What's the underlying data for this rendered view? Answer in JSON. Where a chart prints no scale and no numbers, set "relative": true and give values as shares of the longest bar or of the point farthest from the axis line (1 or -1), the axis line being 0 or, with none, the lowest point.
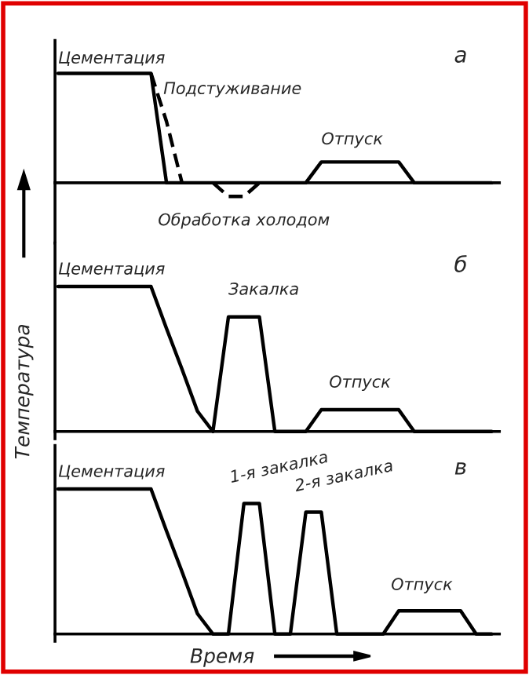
{
  "chart_data": [
    {
      "type": "line",
      "relative": true,
      "title": "а",
      "grid": false,
      "legend": false,
      "marker": "none",
      "categories": [
        null,
        null,
        null,
        null,
        null,
        null,
        null,
        null,
        null,
        null,
        null,
        null,
        null,
        null,
        null,
        null,
        null,
        null,
        null,
        null,
        null,
        null,
        null,
        null,
        null,
        null,
        null,
        null,
        null
      ],
      "annotations": [
        "Цементация",
        "Подстуживание",
        "Обработка холодом",
        "Отпуск"
      ],
      "series": [
        {
          "color": "#000000",
          "line_style": "solid",
          "values": [
            1,
            1,
            1,
            1,
            1,
            1,
            1,
            0,
            0,
            0,
            0,
            0,
            0,
            0,
            0,
            0,
            0,
            0.19,
            0.19,
            0.19,
            0.19,
            0.19,
            0.19,
            0,
            0,
            0,
            0,
            0,
            0
          ]
        },
        {
          "color": "#000000",
          "line_style": "dashed",
          "values": [
            null,
            null,
            null,
            null,
            null,
            null,
            1,
            0.56,
            0,
            null,
            null,
            null,
            null,
            null,
            null,
            null,
            null,
            null,
            null,
            null,
            null,
            null,
            null,
            null,
            null,
            null,
            null,
            null,
            null
          ]
        },
        {
          "color": "#000000",
          "line_style": "dashed",
          "values": [
            null,
            null,
            null,
            null,
            null,
            null,
            null,
            null,
            null,
            null,
            0,
            -0.125,
            -0.125,
            0,
            null,
            null,
            null,
            null,
            null,
            null,
            null,
            null,
            null,
            null,
            null,
            null,
            null,
            null,
            null
          ]
        }
      ]
    },
    {
      "type": "line",
      "relative": true,
      "title": "б",
      "ylabel": "Температура",
      "grid": false,
      "legend": false,
      "marker": "none",
      "categories": [
        null,
        null,
        null,
        null,
        null,
        null,
        null,
        null,
        null,
        null,
        null,
        null,
        null,
        null,
        null,
        null,
        null,
        null,
        null,
        null,
        null,
        null,
        null,
        null,
        null,
        null,
        null,
        null,
        null
      ],
      "annotations": [
        "Цементация",
        "Закалка",
        "Отпуск"
      ],
      "series": [
        {
          "color": "#000000",
          "line_style": "solid",
          "values": [
            1,
            1,
            1,
            1,
            1,
            1,
            1,
            0.71,
            0.43,
            0.14,
            0,
            0.79,
            0.79,
            0.79,
            0,
            0,
            0,
            0.15,
            0.15,
            0.15,
            0.15,
            0.15,
            0.15,
            0,
            0,
            0,
            0,
            0,
            0
          ]
        }
      ]
    },
    {
      "type": "line",
      "relative": true,
      "title": "в",
      "xlabel": "Время",
      "grid": false,
      "legend": false,
      "marker": "none",
      "categories": [
        null,
        null,
        null,
        null,
        null,
        null,
        null,
        null,
        null,
        null,
        null,
        null,
        null,
        null,
        null,
        null,
        null,
        null,
        null,
        null,
        null,
        null,
        null,
        null,
        null,
        null,
        null,
        null,
        null
      ],
      "annotations": [
        "Цементация",
        "1-я закалка",
        "2-я закалка",
        "Отпуск"
      ],
      "series": [
        {
          "color": "#000000",
          "line_style": "solid",
          "values": [
            1,
            1,
            1,
            1,
            1,
            1,
            1,
            0.71,
            0.43,
            0.14,
            0,
            0,
            0.9,
            0.9,
            0,
            0,
            0.84,
            0.84,
            0,
            0,
            0,
            0,
            0.16,
            0.16,
            0.16,
            0.16,
            0.16,
            0,
            0
          ]
        }
      ]
    }
  ]
}
